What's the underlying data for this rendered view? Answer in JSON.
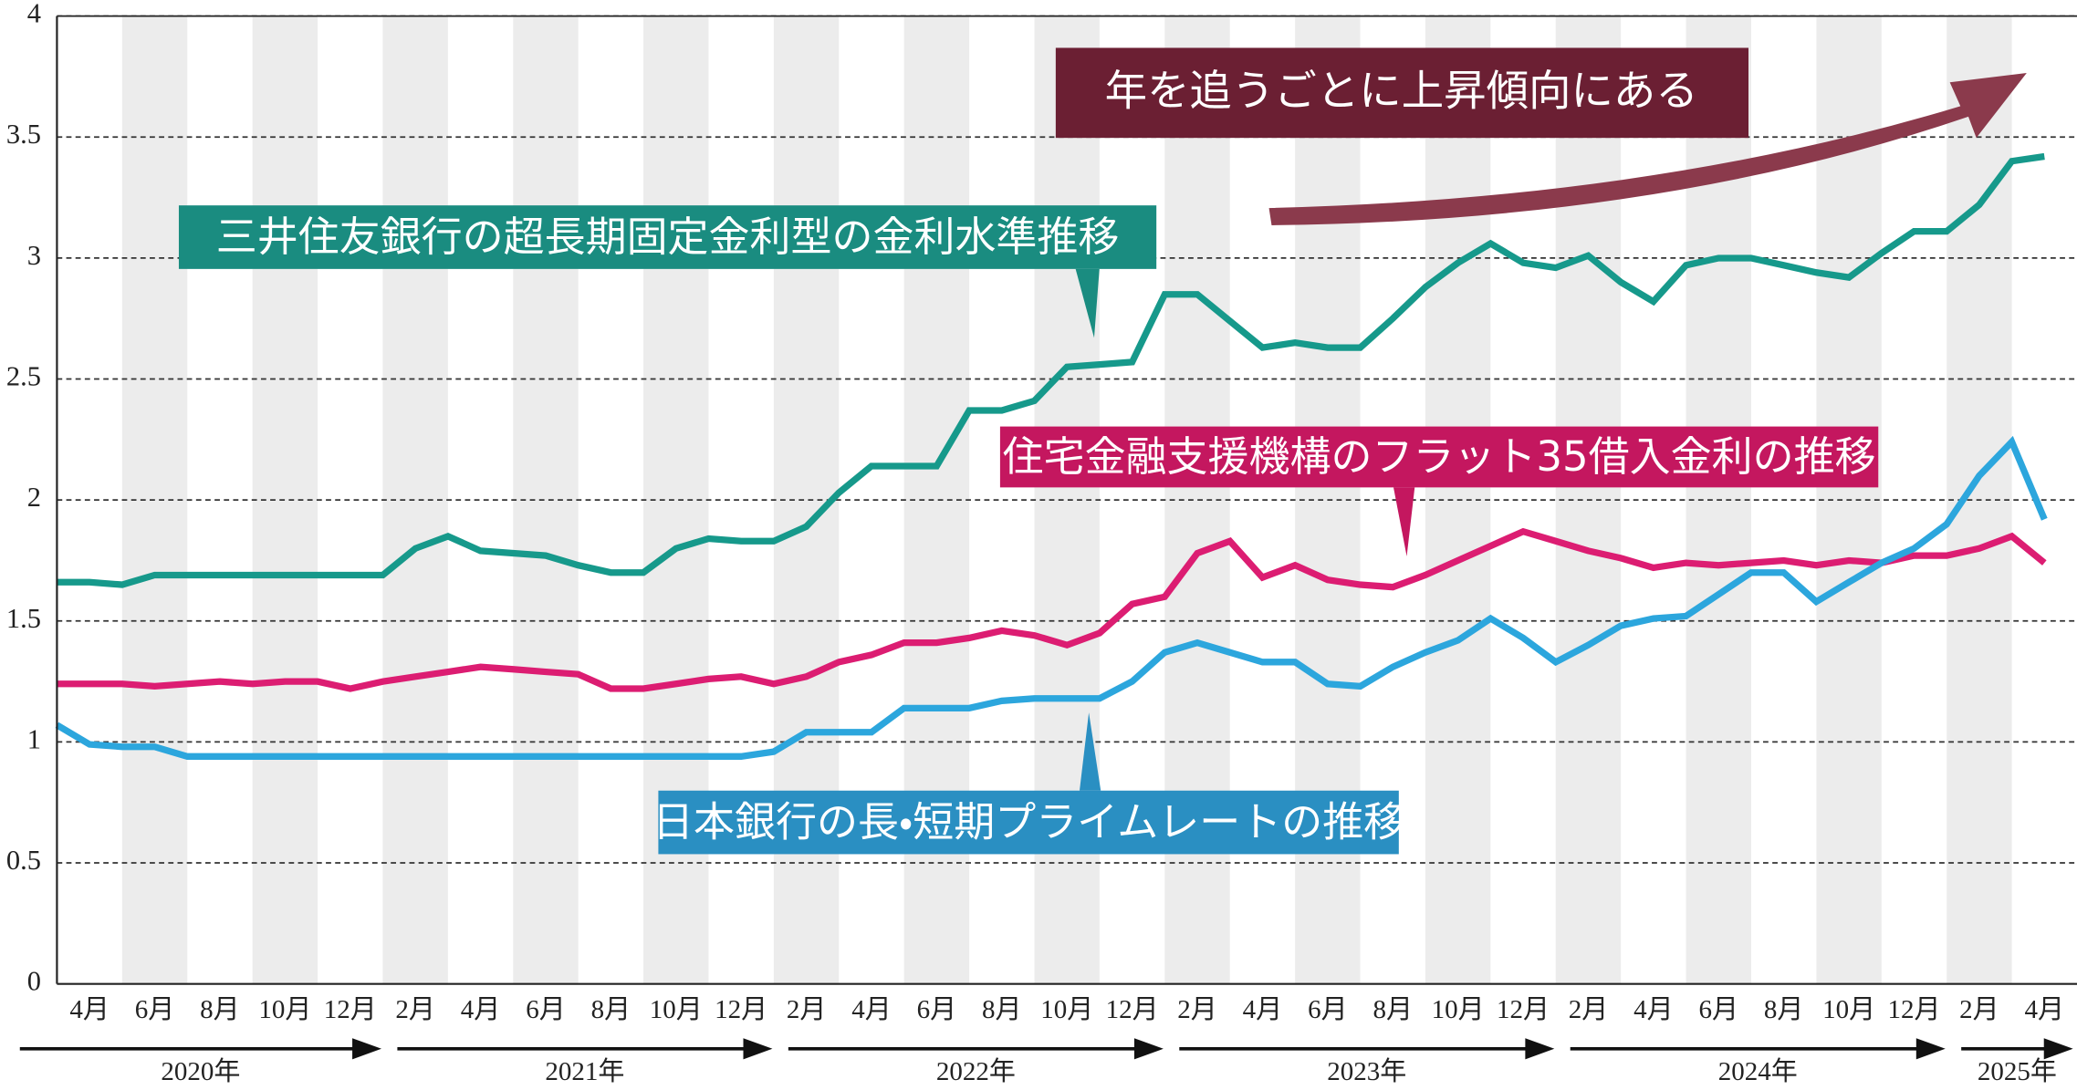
{
  "chart_data": {
    "type": "line",
    "categories": [
      "4月",
      null,
      "6月",
      null,
      "8月",
      null,
      "10月",
      null,
      "12月",
      null,
      "2月",
      null,
      "4月",
      null,
      "6月",
      null,
      "8月",
      null,
      "10月",
      null,
      "12月",
      null,
      "2月",
      null,
      "4月",
      null,
      "6月",
      null,
      "8月",
      null,
      "10月",
      null,
      "12月",
      null,
      "2月",
      null,
      "4月",
      null,
      "6月",
      null,
      "8月",
      null,
      "10月",
      null,
      "12月",
      null,
      "2月",
      null,
      "4月",
      null,
      "6月",
      null,
      "8月",
      null,
      "10月",
      null,
      "12月",
      null,
      "2月",
      null,
      "4月",
      null
    ],
    "x_groups": [
      "2020年",
      "2021年",
      "2022年",
      "2023年",
      "2024年",
      "2025年"
    ],
    "annotation": "年を追うごとに上昇傾向にある",
    "ylim": [
      0,
      4
    ],
    "yticks": [
      0,
      0.5,
      1,
      1.5,
      2,
      2.5,
      3,
      3.5,
      4
    ],
    "grid": true,
    "series": [
      {
        "name": "三井住友銀行の超長期固定金利型の金利水準推移",
        "color": "#16998b",
        "values": [
          1.66,
          1.66,
          1.65,
          1.69,
          1.69,
          1.69,
          1.69,
          1.69,
          1.69,
          1.69,
          1.69,
          1.8,
          1.85,
          1.79,
          1.78,
          1.77,
          1.73,
          1.7,
          1.7,
          1.8,
          1.84,
          1.83,
          1.83,
          1.89,
          2.03,
          2.14,
          2.14,
          2.14,
          2.37,
          2.37,
          2.41,
          2.55,
          2.56,
          2.57,
          2.85,
          2.85,
          2.74,
          2.63,
          2.65,
          2.63,
          2.63,
          2.75,
          2.88,
          2.98,
          3.06,
          2.98,
          2.96,
          3.01,
          2.9,
          2.82,
          2.97,
          3.0,
          3.0,
          2.97,
          2.94,
          2.92,
          3.02,
          3.11,
          3.11,
          3.22,
          3.4,
          3.42
        ]
      },
      {
        "name": "住宅金融支援機構のフラット35借入金利の推移",
        "color": "#dc1d72",
        "values": [
          1.24,
          1.24,
          1.24,
          1.23,
          1.24,
          1.25,
          1.24,
          1.25,
          1.25,
          1.22,
          1.25,
          1.27,
          1.29,
          1.31,
          1.3,
          1.29,
          1.28,
          1.22,
          1.22,
          1.24,
          1.26,
          1.27,
          1.24,
          1.27,
          1.33,
          1.36,
          1.41,
          1.41,
          1.43,
          1.46,
          1.44,
          1.4,
          1.45,
          1.57,
          1.6,
          1.78,
          1.83,
          1.68,
          1.73,
          1.67,
          1.65,
          1.64,
          1.69,
          1.75,
          1.81,
          1.87,
          1.83,
          1.79,
          1.76,
          1.72,
          1.74,
          1.73,
          1.74,
          1.75,
          1.73,
          1.75,
          1.74,
          1.77,
          1.77,
          1.8,
          1.85,
          1.74
        ]
      },
      {
        "name": "日本銀行の長・短期プライムレートの推移",
        "color": "#2ca6dd",
        "values": [
          1.07,
          0.99,
          0.98,
          0.98,
          0.94,
          0.94,
          0.94,
          0.94,
          0.94,
          0.94,
          0.94,
          0.94,
          0.94,
          0.94,
          0.94,
          0.94,
          0.94,
          0.94,
          0.94,
          0.94,
          0.94,
          0.94,
          0.96,
          1.04,
          1.04,
          1.04,
          1.14,
          1.14,
          1.14,
          1.17,
          1.18,
          1.18,
          1.18,
          1.25,
          1.37,
          1.41,
          1.37,
          1.33,
          1.33,
          1.24,
          1.23,
          1.31,
          1.37,
          1.42,
          1.51,
          1.43,
          1.33,
          1.4,
          1.48,
          1.51,
          1.52,
          1.61,
          1.7,
          1.7,
          1.58,
          1.66,
          1.74,
          1.8,
          1.9,
          2.1,
          2.24,
          1.92
        ]
      }
    ]
  }
}
